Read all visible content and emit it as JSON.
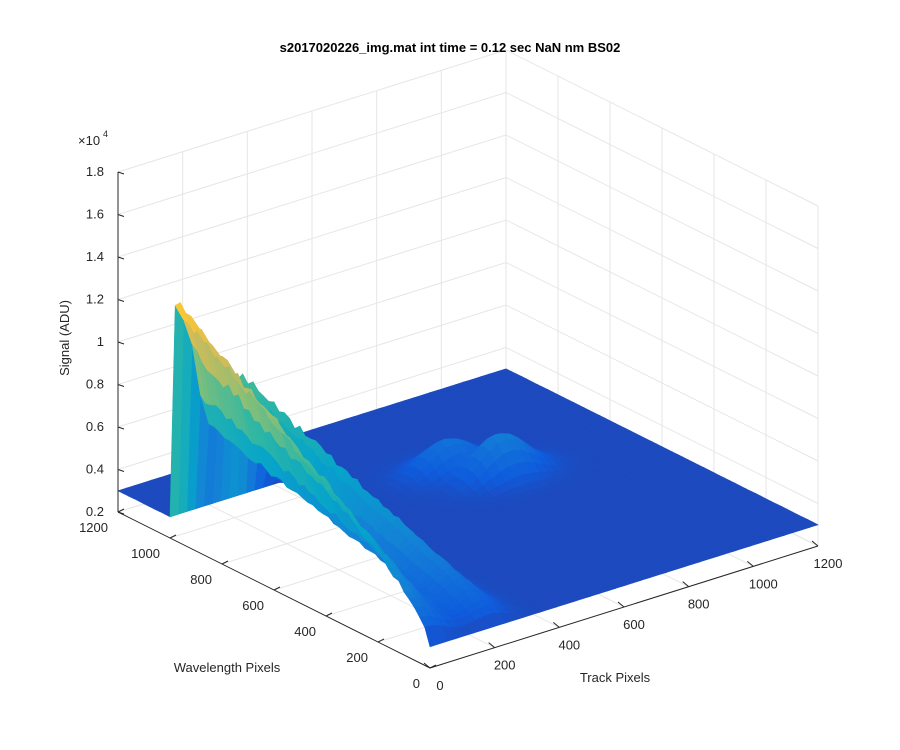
{
  "chart_data": {
    "type": "surface",
    "title": "s2017020226_img.mat int time = 0.12 sec  NaN nm BS02",
    "xlabel": "Track Pixels",
    "ylabel": "Wavelength Pixels",
    "zlabel": "Signal (ADU)",
    "exponent_label": "×10",
    "exponent_power": "4",
    "x_ticks": [
      "0",
      "200",
      "400",
      "600",
      "800",
      "1000",
      "1200"
    ],
    "y_ticks": [
      "0",
      "200",
      "400",
      "600",
      "800",
      "1000",
      "1200"
    ],
    "z_ticks": [
      "0.2",
      "0.4",
      "0.6",
      "0.8",
      "1",
      "1.2",
      "1.4",
      "1.6",
      "1.8"
    ],
    "xlim": [
      0,
      1200
    ],
    "ylim": [
      0,
      1200
    ],
    "zlim": [
      0.2,
      1.8
    ],
    "z_scale": 10000,
    "grid": true,
    "colormap": "parula",
    "colormap_colors": [
      "#352a87",
      "#0f5cdd",
      "#1481d6",
      "#06a4ca",
      "#2eb7a4",
      "#87bf77",
      "#d1bb59",
      "#fec832",
      "#f9fb0e"
    ],
    "baseline_z": 0.3,
    "peak_track_x": 0,
    "signal_ridges": [
      {
        "y_start": 1000,
        "y_end": 0,
        "peak": 1.4
      },
      {
        "y_start": 560,
        "y_end": 0,
        "peak": 0.62
      },
      {
        "y_start": 350,
        "y_end": 0,
        "peak": 0.45
      },
      {
        "y_start": 220,
        "y_end": 0,
        "peak": 0.42
      }
    ],
    "secondary_peaks": [
      {
        "x": 700,
        "y": 800,
        "peak": 0.45
      },
      {
        "x": 780,
        "y": 700,
        "peak": 0.5
      }
    ]
  }
}
